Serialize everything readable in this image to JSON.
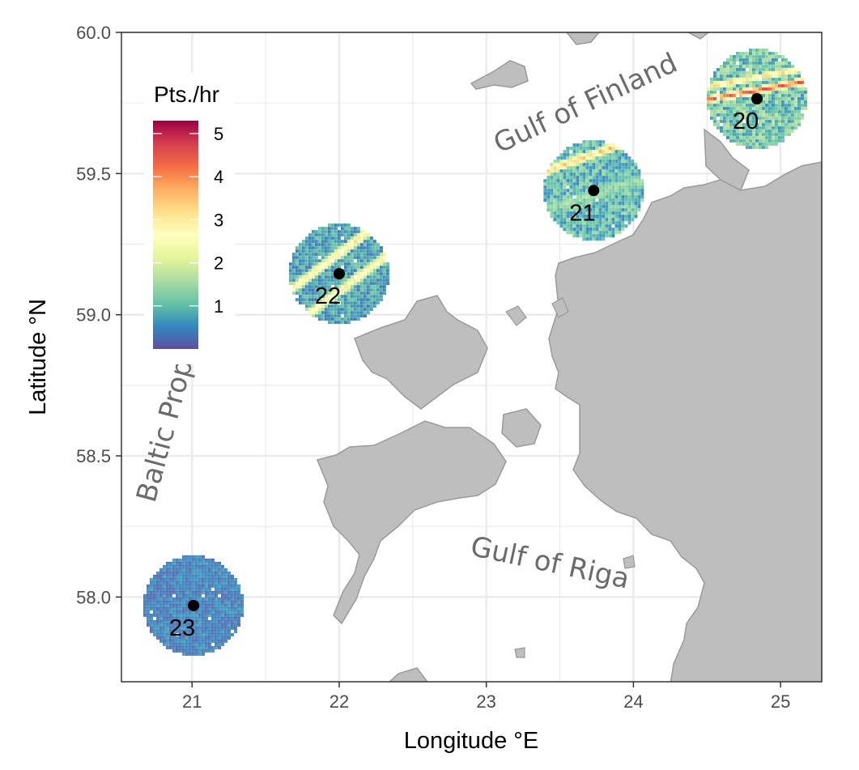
{
  "map": {
    "x_axis": {
      "title": "Longitude °E",
      "range": [
        20.52,
        25.28
      ],
      "ticks": [
        21,
        22,
        23,
        24,
        25
      ],
      "tick_labels": [
        "21",
        "22",
        "23",
        "24",
        "25"
      ]
    },
    "y_axis": {
      "title": "Latitude °N",
      "range": [
        57.7,
        60.0
      ],
      "ticks": [
        58.0,
        58.5,
        59.0,
        59.5,
        60.0
      ],
      "tick_labels": [
        "58.0",
        "58.5",
        "59.0",
        "59.5",
        "60.0"
      ]
    },
    "legend": {
      "title": "Pts./hr",
      "placement": "top-left inside plot",
      "range": [
        0,
        5.3
      ],
      "ticks": [
        1,
        2,
        3,
        4,
        5
      ],
      "tick_labels": [
        "1",
        "2",
        "3",
        "4",
        "5"
      ],
      "colors": [
        "#5e4fa2",
        "#3288bd",
        "#66c2a5",
        "#abdda4",
        "#e6f598",
        "#ffffbf",
        "#fee08b",
        "#fdae61",
        "#f46d43",
        "#d53e4f",
        "#9e0142"
      ]
    },
    "region_labels": [
      {
        "text": "Gulf of Finland",
        "lon": 23.7,
        "lat": 59.72,
        "angle": -25
      },
      {
        "text": "Baltic Proper",
        "lon": 20.9,
        "lat": 58.63,
        "angle": -75
      },
      {
        "text": "Gulf of Riga",
        "lon": 23.42,
        "lat": 58.09,
        "angle": 12
      }
    ],
    "stations": [
      {
        "id": "20",
        "lon": 24.84,
        "lat": 59.765,
        "radius_km": 20
      },
      {
        "id": "21",
        "lon": 23.73,
        "lat": 59.44,
        "radius_km": 20
      },
      {
        "id": "22",
        "lon": 22.0,
        "lat": 59.145,
        "radius_km": 20
      },
      {
        "id": "23",
        "lon": 21.01,
        "lat": 57.97,
        "radius_km": 20
      }
    ],
    "colors": {
      "land": "#bebebe",
      "land_stroke": "#9a9a9a",
      "grid": "#ebebeb",
      "panel_border": "#333333"
    }
  }
}
